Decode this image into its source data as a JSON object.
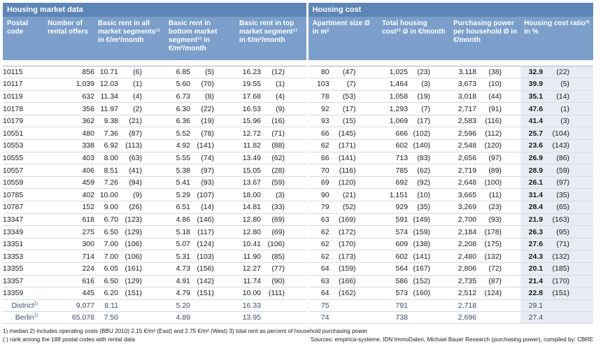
{
  "sections": {
    "market": "Housing market data",
    "cost": "Housing cost"
  },
  "headers": {
    "postal_code": "Postal code",
    "offers": "Number of rental offers",
    "rent_all": "Basic rent in all market segments¹⁾ in €/m²/month",
    "rent_bottom": "Basic rent in bottom market segment¹⁾ in €/m²/month",
    "rent_top": "Basic rent in top market segment¹⁾ in €/m²/month",
    "apt_size": "Apartment size Ø in m²",
    "total_cost": "Total housing cost²⁾ Ø in €/month",
    "purchasing_power": "Purchasing power per household Ø in €/month",
    "cost_ratio": "Housing cost ratio³⁾ in %"
  },
  "rows": [
    [
      "10115",
      "856",
      "10.71",
      "(6)",
      "6.85",
      "(5)",
      "16.23",
      "(12)",
      "80",
      "(47)",
      "1,025",
      "(23)",
      "3,118",
      "(38)",
      "32.9",
      "(22)"
    ],
    [
      "10117",
      "1,039",
      "12.03",
      "(1)",
      "5.60",
      "(70)",
      "19.55",
      "(1)",
      "103",
      "(7)",
      "1,464",
      "(3)",
      "3,673",
      "(10)",
      "39.9",
      "(5)"
    ],
    [
      "10119",
      "632",
      "11.34",
      "(4)",
      "6.73",
      "(8)",
      "17.68",
      "(4)",
      "78",
      "(53)",
      "1,058",
      "(19)",
      "3,018",
      "(44)",
      "35.1",
      "(14)"
    ],
    [
      "10178",
      "356",
      "11.97",
      "(2)",
      "6.30",
      "(22)",
      "16.53",
      "(9)",
      "92",
      "(17)",
      "1,293",
      "(7)",
      "2,717",
      "(91)",
      "47.6",
      "(1)"
    ],
    [
      "10179",
      "362",
      "9.38",
      "(21)",
      "6.36",
      "(19)",
      "15.96",
      "(16)",
      "93",
      "(15)",
      "1,069",
      "(17)",
      "2,583",
      "(116)",
      "41.4",
      "(3)"
    ],
    [
      "10551",
      "480",
      "7.36",
      "(87)",
      "5.52",
      "(78)",
      "12.72",
      "(71)",
      "66",
      "(145)",
      "666",
      "(102)",
      "2,596",
      "(112)",
      "25.7",
      "(104)"
    ],
    [
      "10553",
      "338",
      "6.92",
      "(113)",
      "4.92",
      "(141)",
      "11.82",
      "(88)",
      "62",
      "(171)",
      "602",
      "(140)",
      "2,548",
      "(120)",
      "23.6",
      "(143)"
    ],
    [
      "10555",
      "403",
      "8.00",
      "(63)",
      "5.55",
      "(74)",
      "13.49",
      "(62)",
      "66",
      "(141)",
      "713",
      "(83)",
      "2,656",
      "(97)",
      "26.9",
      "(86)"
    ],
    [
      "10557",
      "406",
      "8.51",
      "(41)",
      "5.38",
      "(97)",
      "15.05",
      "(28)",
      "70",
      "(116)",
      "785",
      "(62)",
      "2,719",
      "(89)",
      "28.9",
      "(59)"
    ],
    [
      "10559",
      "459",
      "7.26",
      "(94)",
      "5.41",
      "(93)",
      "13.67",
      "(59)",
      "69",
      "(120)",
      "692",
      "(92)",
      "2,648",
      "(100)",
      "26.1",
      "(97)"
    ],
    [
      "10785",
      "402",
      "10.00",
      "(9)",
      "5.29",
      "(107)",
      "18.00",
      "(3)",
      "90",
      "(21)",
      "1,151",
      "(10)",
      "3,665",
      "(11)",
      "31.4",
      "(35)"
    ],
    [
      "10787",
      "152",
      "9.00",
      "(26)",
      "6.51",
      "(14)",
      "14.81",
      "(33)",
      "79",
      "(52)",
      "929",
      "(35)",
      "3,269",
      "(23)",
      "28.4",
      "(65)"
    ],
    [
      "13347",
      "618",
      "6.70",
      "(123)",
      "4.86",
      "(146)",
      "12.80",
      "(69)",
      "63",
      "(169)",
      "591",
      "(149)",
      "2,700",
      "(93)",
      "21.9",
      "(163)"
    ],
    [
      "13349",
      "275",
      "6.50",
      "(129)",
      "5.18",
      "(117)",
      "12.80",
      "(69)",
      "62",
      "(172)",
      "574",
      "(159)",
      "2,184",
      "(178)",
      "26.3",
      "(95)"
    ],
    [
      "13351",
      "300",
      "7.00",
      "(106)",
      "5.07",
      "(124)",
      "10.41",
      "(106)",
      "62",
      "(170)",
      "609",
      "(138)",
      "2,208",
      "(175)",
      "27.6",
      "(71)"
    ],
    [
      "13353",
      "714",
      "7.00",
      "(106)",
      "5.31",
      "(103)",
      "11.90",
      "(85)",
      "62",
      "(173)",
      "602",
      "(141)",
      "2,480",
      "(132)",
      "24.3",
      "(132)"
    ],
    [
      "13355",
      "224",
      "6.05",
      "(161)",
      "4.73",
      "(156)",
      "12.27",
      "(77)",
      "64",
      "(159)",
      "564",
      "(167)",
      "2,806",
      "(72)",
      "20.1",
      "(185)"
    ],
    [
      "13357",
      "616",
      "6.50",
      "(129)",
      "4.91",
      "(142)",
      "11.74",
      "(90)",
      "63",
      "(166)",
      "586",
      "(152)",
      "2,735",
      "(87)",
      "21.4",
      "(170)"
    ],
    [
      "13359",
      "445",
      "6.20",
      "(151)",
      "4.79",
      "(151)",
      "10.00",
      "(111)",
      "64",
      "(162)",
      "573",
      "(160)",
      "2,512",
      "(124)",
      "22.8",
      "(151)"
    ]
  ],
  "summary": [
    {
      "label": "District",
      "sup": "1)",
      "values": [
        "9,077",
        "8.11",
        "5.20",
        "16.33",
        "75",
        "791",
        "2,718",
        "29.1"
      ]
    },
    {
      "label": "Berlin",
      "sup": "1)",
      "values": [
        "65,078",
        "7.50",
        "4.89",
        "13.95",
        "74",
        "738",
        "2,696",
        "27.4"
      ]
    }
  ],
  "footnotes": {
    "line1": "1) median   2) includes operating costs (BBU 2010) 2.15 €/m² (East) and 2.75 €/m² (West)   3) total rent as percent of household purchasing power",
    "line2": "( ) rank among the 188 postal codes with rental data",
    "sources": "Sources: empirica-systeme, IDN ImmoDaten, Michael Bauer Research (purchasing power), compiled by: CBRE"
  }
}
